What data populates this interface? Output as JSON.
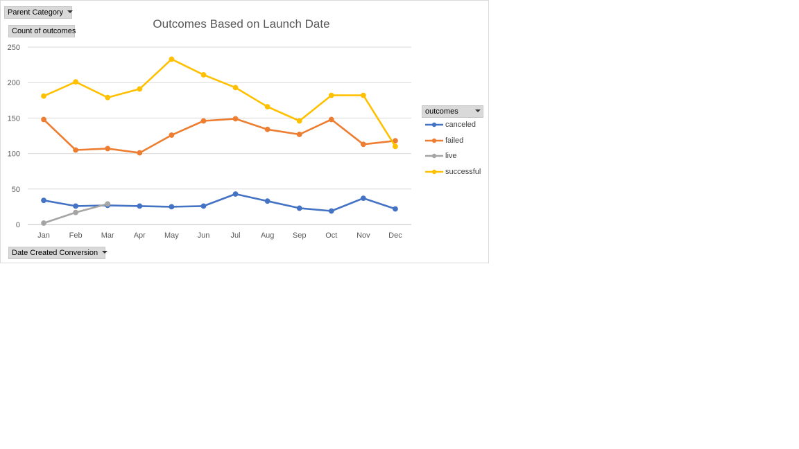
{
  "field_buttons": {
    "parent_category": "Parent Category",
    "count_of_outcomes": "Count of outcomes",
    "date_created_conversion": "Date Created Conversion",
    "outcomes": "outcomes"
  },
  "colors": {
    "canceled": "#4472c4",
    "failed": "#ed7d31",
    "live": "#a5a5a5",
    "successful": "#ffc000",
    "gridline": "#d9d9d9",
    "axis_text": "#595959"
  },
  "chart_data": {
    "type": "line",
    "title": "Outcomes Based on Launch Date",
    "xlabel": "",
    "ylabel": "",
    "categories": [
      "Jan",
      "Feb",
      "Mar",
      "Apr",
      "May",
      "Jun",
      "Jul",
      "Aug",
      "Sep",
      "Oct",
      "Nov",
      "Dec"
    ],
    "ylim": [
      0,
      250
    ],
    "yticks": [
      0,
      50,
      100,
      150,
      200,
      250
    ],
    "grid": true,
    "legend_position": "right",
    "series": [
      {
        "name": "canceled",
        "values": [
          34,
          26,
          27,
          26,
          25,
          26,
          43,
          33,
          23,
          19,
          37,
          22
        ]
      },
      {
        "name": "failed",
        "values": [
          148,
          105,
          107,
          101,
          126,
          146,
          149,
          134,
          127,
          148,
          113,
          118
        ]
      },
      {
        "name": "live",
        "values": [
          2,
          17,
          29,
          null,
          null,
          null,
          null,
          null,
          null,
          null,
          null,
          null
        ]
      },
      {
        "name": "successful",
        "values": [
          181,
          201,
          179,
          191,
          233,
          211,
          193,
          166,
          146,
          182,
          182,
          110
        ]
      }
    ]
  }
}
